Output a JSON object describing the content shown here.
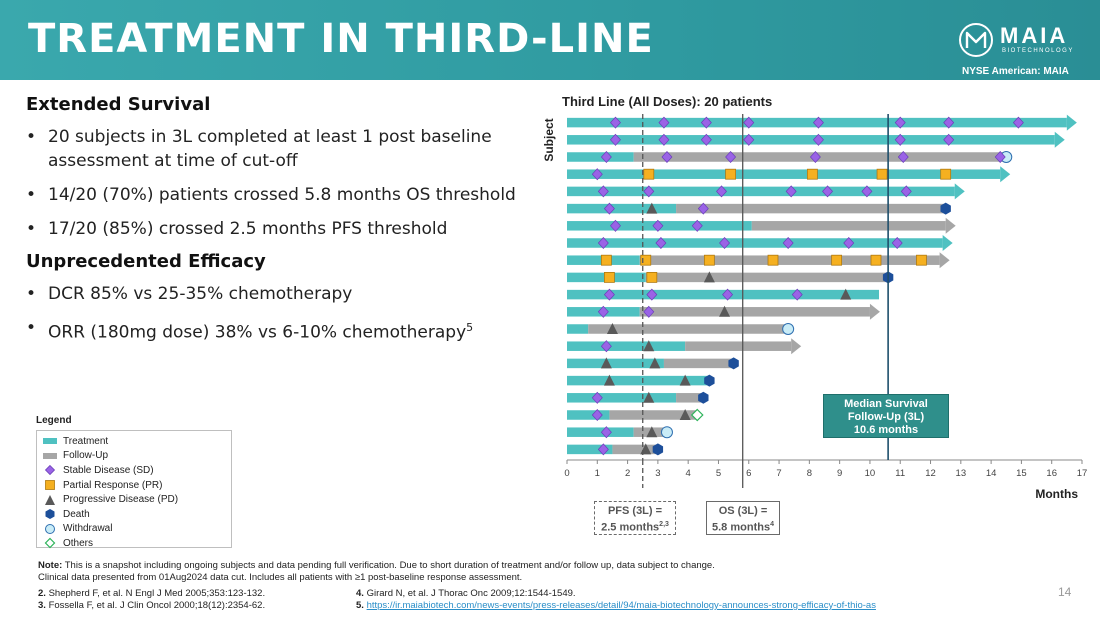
{
  "header": {
    "title": "TREATMENT IN THIRD-LINE",
    "logo_text": "MAIA",
    "logo_sub": "BIOTECHNOLOGY",
    "exchange": "NYSE American: MAIA"
  },
  "left": {
    "section1_title": "Extended Survival",
    "section1_bullets": [
      "20 subjects in 3L completed at least 1 post baseline assessment at time of cut-off",
      "14/20 (70%) patients crossed 5.8 months OS threshold",
      "17/20 (85%) crossed 2.5 months PFS threshold"
    ],
    "section2_title": "Unprecedented Efficacy",
    "section2_bullets": [
      "DCR 85% vs 25-35% chemotherapy",
      "ORR (180mg dose) 38% vs 6-10% chemotherapy"
    ],
    "orr_ref": "5"
  },
  "legend": {
    "title": "Legend",
    "items": [
      "Treatment",
      "Follow-Up",
      "Stable Disease (SD)",
      "Partial Response (PR)",
      "Progressive Disease (PD)",
      "Death",
      "Withdrawal",
      "Others"
    ]
  },
  "annotations": {
    "median_line1": "Median Survival",
    "median_line2": "Follow-Up (3L)",
    "median_line3": "10.6 months",
    "pfs_line1": "PFS (3L) =",
    "pfs_line2": "2.5 months",
    "pfs_ref": "2,3",
    "os_line1": "OS (3L) =",
    "os_line2": "5.8 months",
    "os_ref": "4"
  },
  "colors": {
    "treatment": "#4fc1c1",
    "followup": "#a6a6a6",
    "sd": "#9a63e6",
    "pr": "#f5b020",
    "pd": "#595959",
    "death": "#1d4f9a",
    "withdrawal": "#c9ecf7",
    "others": "#2db35a"
  },
  "footer": {
    "note_label": "Note:",
    "note_text": " This is a snapshot including ongoing subjects and data pending full verification. Due to short duration of treatment and/or follow up, data subject to change.",
    "note_line2": "Clinical data presented from 01Aug2024 data cut. Includes all patients with ≥1 post-baseline response assessment.",
    "ref2_num": "2.",
    "ref2": " Shepherd F, et al. N Engl J Med 2005;353:123-132.",
    "ref3_num": "3.",
    "ref3": " Fossella F, et al. J Clin Oncol 2000;18(12):2354-62.",
    "ref4_num": "4.",
    "ref4": " Girard N, et al. J Thorac Onc 2009;12:1544-1549.",
    "ref5_num": "5.",
    "ref5": "https://ir.maiabiotech.com/news-events/press-releases/detail/94/maia-biotechnology-announces-strong-efficacy-of-thio-as",
    "page": "14"
  },
  "chart_data": {
    "type": "swimmer",
    "title": "Third Line (All Doses): 20 patients",
    "xlabel": "Months",
    "ylabel": "Subject",
    "xlim": [
      0,
      17
    ],
    "xticks": [
      0,
      1,
      2,
      3,
      4,
      5,
      6,
      7,
      8,
      9,
      10,
      11,
      12,
      13,
      14,
      15,
      16,
      17
    ],
    "reference_lines": [
      {
        "x": 2.5,
        "style": "dashed"
      },
      {
        "x": 5.8,
        "style": "solid"
      },
      {
        "x": 10.6,
        "style": "solid"
      }
    ],
    "subjects": [
      {
        "treat": 16.5,
        "follow": 0,
        "arrow": true,
        "end": "none",
        "sd": [
          1.6,
          3.2,
          4.6,
          6.0,
          8.3,
          11.0,
          12.6,
          14.9
        ],
        "pr": [],
        "pd": []
      },
      {
        "treat": 16.1,
        "follow": 0,
        "arrow": true,
        "end": "none",
        "sd": [
          1.6,
          3.2,
          4.6,
          6.0,
          8.3,
          11.0,
          12.6
        ],
        "pr": [],
        "pd": []
      },
      {
        "treat": 2.2,
        "follow": 12.3,
        "arrow": false,
        "end": "withdrawal",
        "sd": [
          1.3,
          3.3,
          5.4,
          8.2,
          11.1,
          14.3
        ],
        "pr": [],
        "pd": []
      },
      {
        "treat": 14.3,
        "follow": 0,
        "arrow": true,
        "end": "none",
        "sd": [
          1.0
        ],
        "pr": [
          2.7,
          5.4,
          8.1,
          10.4,
          12.5
        ],
        "pr_check": true,
        "pd": []
      },
      {
        "treat": 12.8,
        "follow": 0,
        "arrow": true,
        "end": "none",
        "sd": [
          1.2,
          2.7,
          5.1,
          7.4,
          8.6,
          9.9,
          11.2
        ],
        "pr": [],
        "pd": []
      },
      {
        "treat": 3.6,
        "follow": 8.9,
        "arrow": false,
        "end": "death",
        "sd": [
          1.4,
          4.5
        ],
        "pr": [],
        "pd": [
          2.8
        ]
      },
      {
        "treat": 6.1,
        "follow": 6.4,
        "arrow": true,
        "end": "none",
        "sd": [
          1.6,
          3.0,
          4.3
        ],
        "pr": [],
        "pd": []
      },
      {
        "treat": 12.4,
        "follow": 0,
        "arrow": true,
        "end": "none",
        "sd": [
          1.2,
          3.1,
          5.2,
          7.3,
          9.3,
          10.9
        ],
        "pr": [],
        "pd": []
      },
      {
        "treat": 2.4,
        "follow": 9.9,
        "arrow": true,
        "end": "none",
        "sd": [],
        "pr": [
          1.3,
          2.6,
          4.7,
          6.8,
          8.9,
          10.2,
          11.7
        ],
        "pd": []
      },
      {
        "treat": 2.6,
        "follow": 8.0,
        "arrow": false,
        "end": "death",
        "sd": [],
        "pr": [
          1.4,
          2.8
        ],
        "pd": [
          4.7
        ]
      },
      {
        "treat": 10.3,
        "follow": 0,
        "arrow": false,
        "end": "none",
        "sd": [
          1.4,
          2.8,
          5.3,
          7.6
        ],
        "pr": [],
        "pd": [
          9.2
        ]
      },
      {
        "treat": 2.4,
        "follow": 7.6,
        "arrow": true,
        "end": "none",
        "sd": [
          1.2,
          2.7
        ],
        "pr": [],
        "pd": [
          5.2
        ]
      },
      {
        "treat": 0.7,
        "follow": 6.6,
        "arrow": false,
        "end": "withdrawal",
        "sd": [],
        "pr": [],
        "pd": [
          1.5
        ]
      },
      {
        "treat": 3.9,
        "follow": 3.5,
        "arrow": true,
        "end": "none",
        "sd": [
          1.3
        ],
        "pr": [],
        "pd": [
          2.7
        ]
      },
      {
        "treat": 3.2,
        "follow": 2.3,
        "arrow": false,
        "end": "death",
        "sd": [],
        "pr": [],
        "pd": [
          1.3,
          2.9
        ]
      },
      {
        "treat": 4.7,
        "follow": 0,
        "arrow": false,
        "end": "death",
        "sd": [],
        "pr": [],
        "pd": [
          1.4,
          3.9
        ]
      },
      {
        "treat": 3.6,
        "follow": 0.9,
        "arrow": false,
        "end": "death",
        "sd": [
          1.0
        ],
        "pr": [],
        "pd": [
          2.7
        ]
      },
      {
        "treat": 1.4,
        "follow": 2.9,
        "arrow": false,
        "end": "others",
        "sd": [
          1.0
        ],
        "pr": [],
        "pd": [
          3.9
        ]
      },
      {
        "treat": 2.2,
        "follow": 1.1,
        "arrow": false,
        "end": "withdrawal",
        "sd": [
          1.3
        ],
        "pr": [],
        "pd": [
          2.8
        ]
      },
      {
        "treat": 1.5,
        "follow": 1.5,
        "arrow": false,
        "end": "death",
        "sd": [
          1.2
        ],
        "pr": [],
        "pd": [
          2.6
        ]
      }
    ]
  }
}
